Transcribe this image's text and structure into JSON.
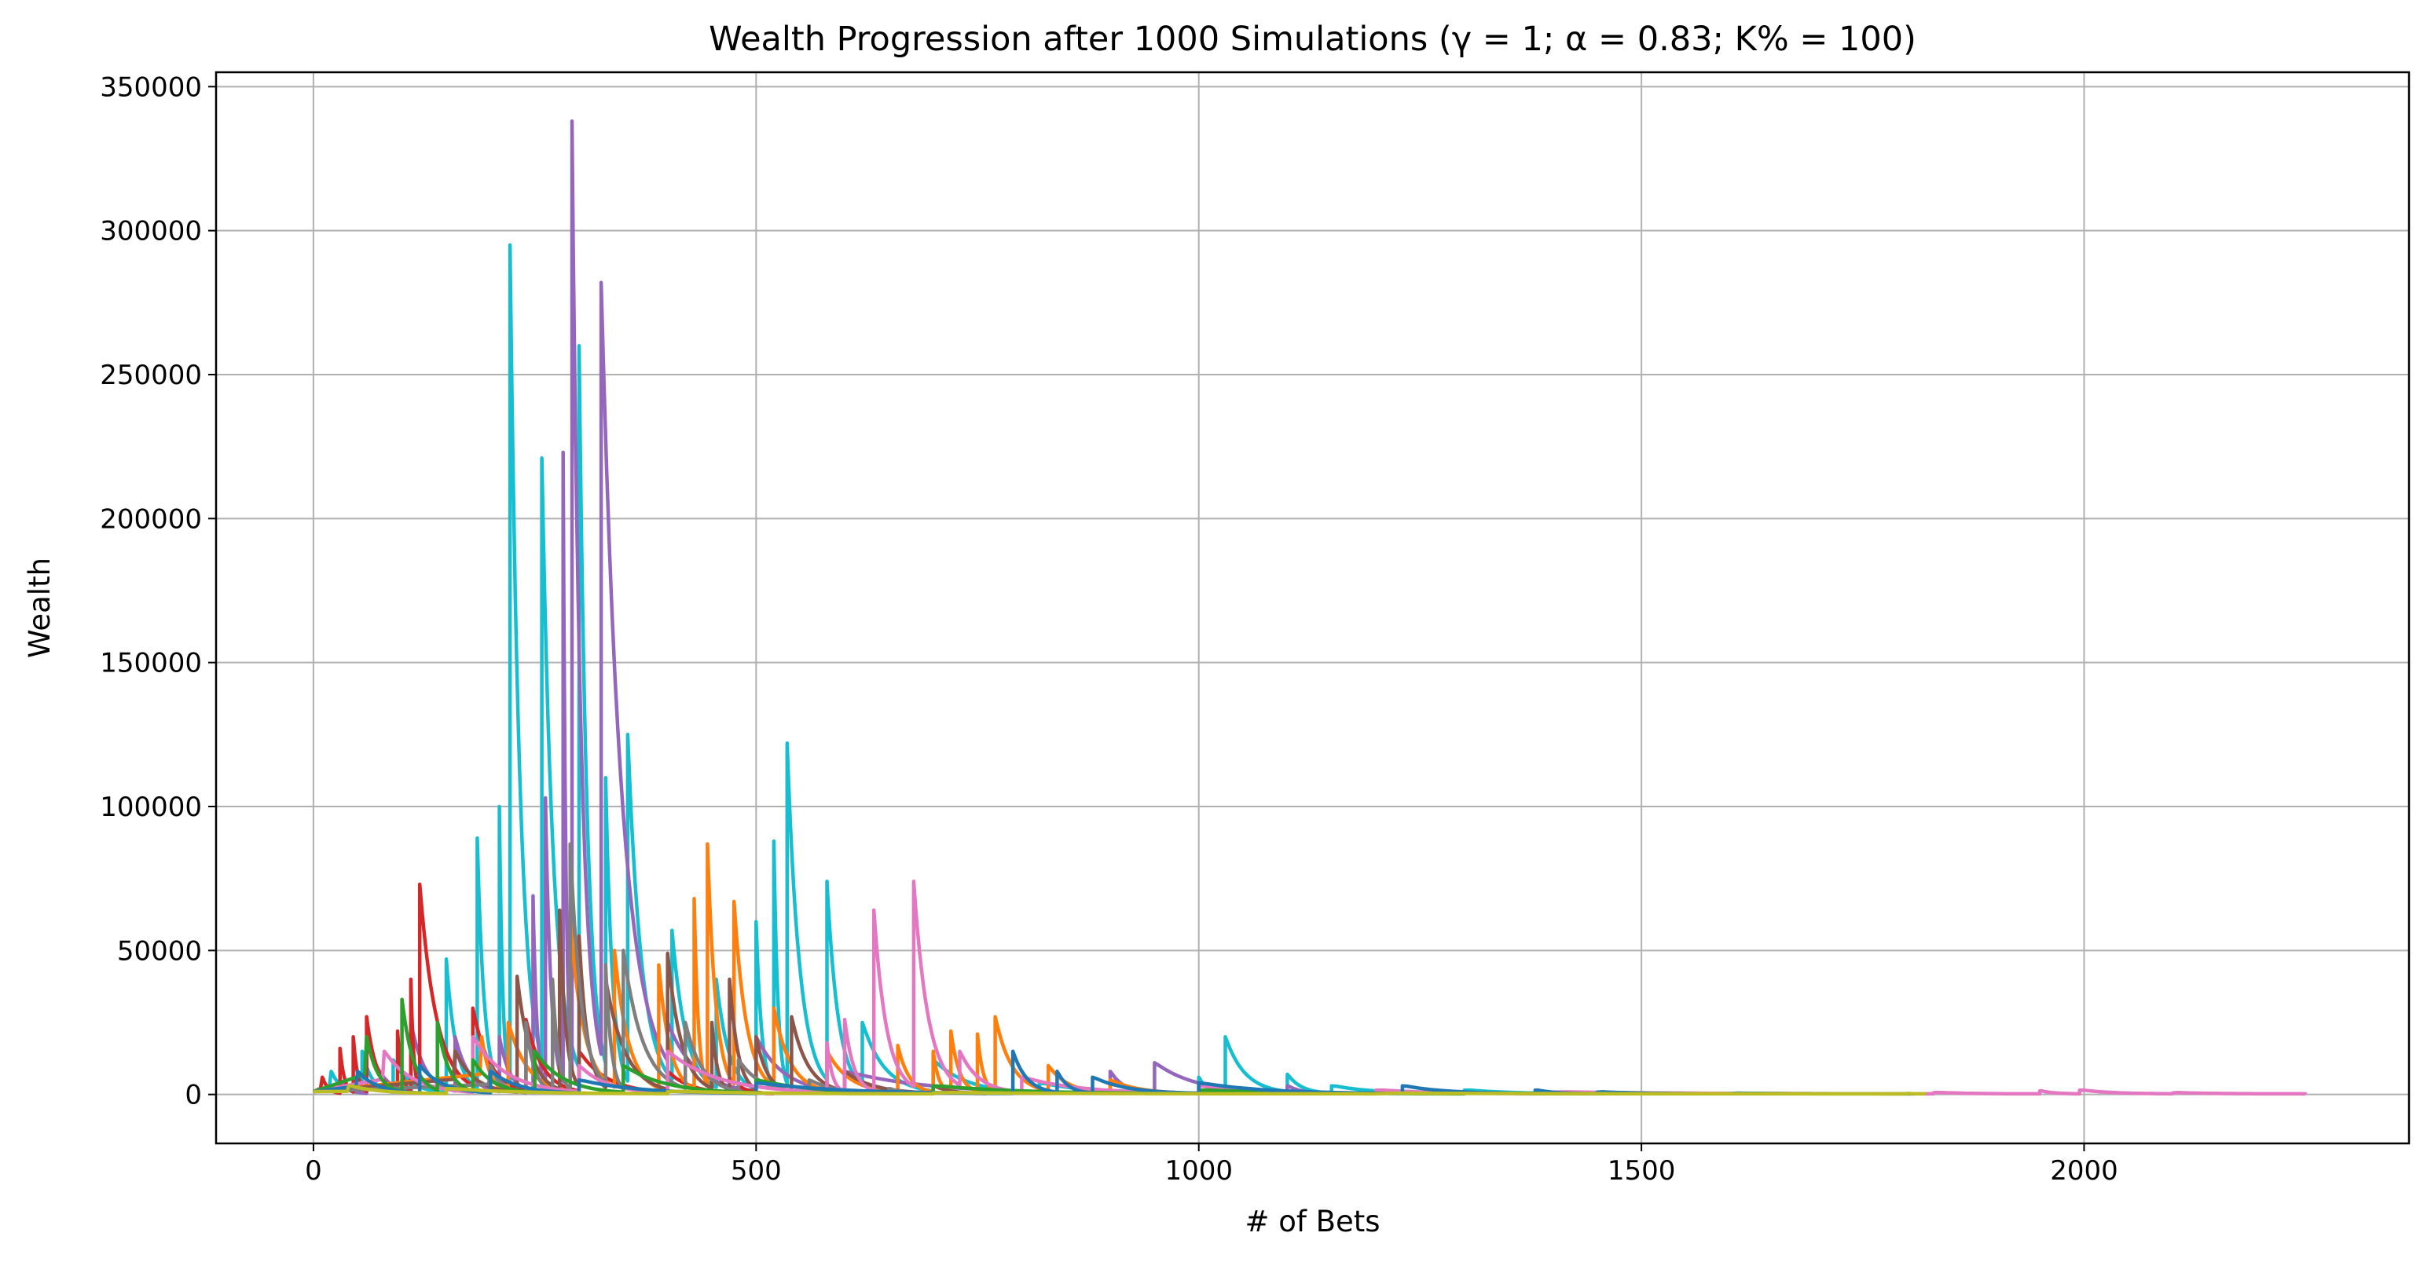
{
  "chart_data": {
    "type": "line",
    "title": "Wealth Progression after 1000 Simulations (γ = 1; α = 0.83; K% = 100)",
    "xlabel": "# of Bets",
    "ylabel": "Wealth",
    "xlim": [
      -110,
      2367
    ],
    "ylim": [
      -17000,
      355000
    ],
    "xticks": [
      0,
      500,
      1000,
      1500,
      2000
    ],
    "yticks": [
      0,
      50000,
      100000,
      150000,
      200000,
      250000,
      300000,
      350000
    ],
    "grid": true,
    "legend": "none",
    "palette": [
      "#1f77b4",
      "#ff7f0e",
      "#2ca02c",
      "#d62728",
      "#9467bd",
      "#8c564b",
      "#e377c2",
      "#7f7f7f",
      "#bcbd22",
      "#17becf"
    ],
    "series": [
      {
        "color": "#17becf",
        "peaks": [
          [
            20,
            8000
          ],
          [
            55,
            15000
          ],
          [
            90,
            12000
          ],
          [
            150,
            47000
          ],
          [
            185,
            89000
          ],
          [
            210,
            100000
          ],
          [
            222,
            295000
          ],
          [
            258,
            221000
          ],
          [
            300,
            260000
          ],
          [
            330,
            110000
          ],
          [
            355,
            125000
          ],
          [
            405,
            57000
          ],
          [
            455,
            40000
          ],
          [
            500,
            60000
          ],
          [
            520,
            88000
          ],
          [
            535,
            122000
          ],
          [
            580,
            74000
          ],
          [
            620,
            25000
          ],
          [
            700,
            12000
          ],
          [
            820,
            4000
          ],
          [
            1000,
            6000
          ],
          [
            1030,
            20000
          ],
          [
            1100,
            7000
          ],
          [
            1150,
            3000
          ],
          [
            1300,
            1500
          ],
          [
            1460,
            500
          ]
        ],
        "end_x": 1500
      },
      {
        "color": "#9467bd",
        "peaks": [
          [
            30,
            5000
          ],
          [
            60,
            20000
          ],
          [
            110,
            25000
          ],
          [
            160,
            20000
          ],
          [
            210,
            20000
          ],
          [
            248,
            69000
          ],
          [
            262,
            103000
          ],
          [
            282,
            223000
          ],
          [
            292,
            338000
          ],
          [
            325,
            282000
          ],
          [
            400,
            25000
          ],
          [
            500,
            20000
          ],
          [
            600,
            8000
          ],
          [
            900,
            8000
          ],
          [
            950,
            11000
          ],
          [
            1100,
            3000
          ]
        ],
        "end_x": 1150
      },
      {
        "color": "#d62728",
        "peaks": [
          [
            10,
            6000
          ],
          [
            30,
            16000
          ],
          [
            45,
            20000
          ],
          [
            60,
            27000
          ],
          [
            95,
            22000
          ],
          [
            110,
            40000
          ],
          [
            120,
            73000
          ],
          [
            180,
            30000
          ],
          [
            240,
            26000
          ],
          [
            300,
            15000
          ],
          [
            400,
            8000
          ],
          [
            480,
            3000
          ]
        ],
        "end_x": 520
      },
      {
        "color": "#ff7f0e",
        "peaks": [
          [
            190,
            20000
          ],
          [
            220,
            25000
          ],
          [
            290,
            60000
          ],
          [
            340,
            50000
          ],
          [
            390,
            45000
          ],
          [
            430,
            68000
          ],
          [
            445,
            87000
          ],
          [
            475,
            67000
          ],
          [
            520,
            30000
          ],
          [
            580,
            15000
          ],
          [
            660,
            17000
          ],
          [
            700,
            15000
          ],
          [
            720,
            22000
          ],
          [
            750,
            21000
          ],
          [
            770,
            27000
          ],
          [
            830,
            10000
          ],
          [
            900,
            5000
          ],
          [
            1000,
            4000
          ]
        ],
        "end_x": 1060
      },
      {
        "color": "#8c564b",
        "peaks": [
          [
            160,
            15000
          ],
          [
            230,
            41000
          ],
          [
            278,
            64000
          ],
          [
            300,
            55000
          ],
          [
            330,
            40000
          ],
          [
            400,
            49000
          ],
          [
            450,
            25000
          ],
          [
            470,
            40000
          ],
          [
            500,
            20000
          ],
          [
            540,
            27000
          ],
          [
            600,
            8000
          ],
          [
            700,
            3000
          ]
        ],
        "end_x": 760
      },
      {
        "color": "#7f7f7f",
        "peaks": [
          [
            200,
            10000
          ],
          [
            240,
            25000
          ],
          [
            270,
            40000
          ],
          [
            290,
            87000
          ],
          [
            330,
            45000
          ],
          [
            350,
            50000
          ],
          [
            420,
            25000
          ],
          [
            480,
            12000
          ],
          [
            560,
            5000
          ],
          [
            650,
            2000
          ]
        ],
        "end_x": 700
      },
      {
        "color": "#e377c2",
        "peaks": [
          [
            80,
            15000
          ],
          [
            180,
            20000
          ],
          [
            300,
            10000
          ],
          [
            400,
            15000
          ],
          [
            580,
            18000
          ],
          [
            600,
            26000
          ],
          [
            633,
            64000
          ],
          [
            678,
            74000
          ],
          [
            730,
            15000
          ],
          [
            800,
            6000
          ],
          [
            1000,
            3000
          ],
          [
            1200,
            1500
          ],
          [
            1400,
            800
          ],
          [
            1830,
            600
          ],
          [
            1950,
            1200
          ],
          [
            1995,
            1500
          ],
          [
            2100,
            500
          ]
        ],
        "end_x": 2250
      },
      {
        "color": "#2ca02c",
        "peaks": [
          [
            60,
            20000
          ],
          [
            100,
            33000
          ],
          [
            140,
            25000
          ],
          [
            180,
            12000
          ],
          [
            250,
            15000
          ],
          [
            350,
            10000
          ],
          [
            500,
            5000
          ],
          [
            700,
            3000
          ],
          [
            1000,
            1500
          ],
          [
            1300,
            600
          ]
        ],
        "end_x": 1460
      },
      {
        "color": "#1f77b4",
        "peaks": [
          [
            50,
            8000
          ],
          [
            120,
            10000
          ],
          [
            200,
            8000
          ],
          [
            300,
            5000
          ],
          [
            500,
            4000
          ],
          [
            790,
            15000
          ],
          [
            840,
            8000
          ],
          [
            880,
            6000
          ],
          [
            1000,
            4000
          ],
          [
            1230,
            3000
          ],
          [
            1380,
            1500
          ],
          [
            1450,
            800
          ],
          [
            1600,
            300
          ]
        ],
        "end_x": 1810
      },
      {
        "color": "#bcbd22",
        "peaks": [
          [
            40,
            3000
          ],
          [
            150,
            2000
          ],
          [
            400,
            1000
          ],
          [
            700,
            500
          ],
          [
            1200,
            300
          ],
          [
            1800,
            200
          ]
        ],
        "end_x": 1820
      }
    ]
  }
}
